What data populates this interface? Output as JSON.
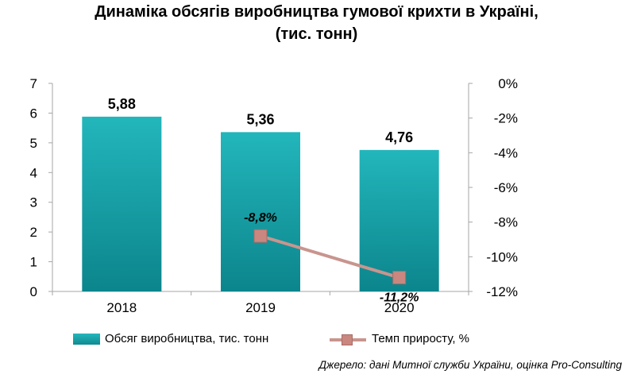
{
  "title_line1": "Динаміка обсягів виробництва гумової крихти в Україні,",
  "title_line2": "(тис. тонн)",
  "source": "Джерело: дані Митної служби України, оцінка Pro-Consulting",
  "colors": {
    "bar": "#12a2a8",
    "line": "#c8958e",
    "marker": "#c9877f"
  },
  "chart_data": {
    "type": "bar",
    "categories": [
      "2018",
      "2019",
      "2020"
    ],
    "series": [
      {
        "name": "Обсяг виробництва, тис. тонн",
        "type": "bar",
        "axis": "left",
        "values": [
          5.88,
          5.36,
          4.76
        ],
        "labels": [
          "5,88",
          "5,36",
          "4,76"
        ]
      },
      {
        "name": "Темп приросту, %",
        "type": "line",
        "axis": "right",
        "values": [
          null,
          -8.8,
          -11.2
        ],
        "labels": [
          "",
          "-8,8%",
          "-11,2%"
        ]
      }
    ],
    "y_left": {
      "min": 0,
      "max": 7,
      "ticks": [
        "0",
        "1",
        "2",
        "3",
        "4",
        "5",
        "6",
        "7"
      ]
    },
    "y_right": {
      "min": -12,
      "max": 0,
      "ticks": [
        "0%",
        "-2%",
        "-4%",
        "-6%",
        "-8%",
        "-10%",
        "-12%"
      ]
    },
    "legend": "bottom",
    "grid": false
  }
}
